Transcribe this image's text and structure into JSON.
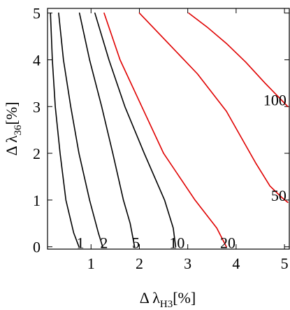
{
  "chart_data": {
    "type": "line",
    "subtype": "contour",
    "xlabel": {
      "prefix": "Δ λ",
      "sub": "H3",
      "suffix": "[%]"
    },
    "ylabel": {
      "prefix": "Δ λ",
      "sub": "36",
      "suffix": "[%]"
    },
    "xlim": [
      0.1,
      5.1
    ],
    "ylim": [
      -0.05,
      5.1
    ],
    "x_ticks": [
      "1",
      "2",
      "3",
      "4",
      "5"
    ],
    "y_ticks": [
      "0",
      "1",
      "2",
      "3",
      "4",
      "5"
    ],
    "grid": false,
    "legend": "none",
    "series": [
      {
        "label": "1",
        "color": "#000000",
        "points": [
          [
            0.16,
            5.0
          ],
          [
            0.2,
            4.0
          ],
          [
            0.26,
            3.0
          ],
          [
            0.36,
            2.0
          ],
          [
            0.48,
            1.0
          ],
          [
            0.64,
            0.3
          ],
          [
            0.75,
            0.0
          ]
        ]
      },
      {
        "label": "2",
        "color": "#000000",
        "points": [
          [
            0.33,
            5.0
          ],
          [
            0.43,
            4.0
          ],
          [
            0.58,
            3.0
          ],
          [
            0.75,
            2.0
          ],
          [
            0.97,
            1.0
          ],
          [
            1.15,
            0.3
          ],
          [
            1.24,
            0.0
          ]
        ]
      },
      {
        "label": "5",
        "color": "#000000",
        "points": [
          [
            0.76,
            5.0
          ],
          [
            0.97,
            4.0
          ],
          [
            1.22,
            3.0
          ],
          [
            1.45,
            2.0
          ],
          [
            1.67,
            1.0
          ],
          [
            1.81,
            0.5
          ],
          [
            1.9,
            0.0
          ]
        ]
      },
      {
        "label": "10",
        "color": "#000000",
        "points": [
          [
            1.08,
            5.0
          ],
          [
            1.37,
            4.0
          ],
          [
            1.7,
            3.0
          ],
          [
            2.1,
            2.0
          ],
          [
            2.52,
            1.0
          ],
          [
            2.7,
            0.4
          ],
          [
            2.75,
            0.0
          ]
        ]
      },
      {
        "label": "20",
        "color": "#e00000",
        "points": [
          [
            1.27,
            5.0
          ],
          [
            1.6,
            4.0
          ],
          [
            2.05,
            3.0
          ],
          [
            2.5,
            2.0
          ],
          [
            3.15,
            1.0
          ],
          [
            3.6,
            0.4
          ],
          [
            3.8,
            0.0
          ]
        ]
      },
      {
        "label": "50",
        "color": "#e00000",
        "points": [
          [
            2.0,
            5.0
          ],
          [
            2.6,
            4.35
          ],
          [
            3.2,
            3.7
          ],
          [
            3.8,
            2.9
          ],
          [
            4.4,
            1.8
          ],
          [
            4.7,
            1.3
          ],
          [
            4.95,
            1.05
          ],
          [
            5.07,
            0.95
          ]
        ]
      },
      {
        "label": "100",
        "color": "#e00000",
        "points": [
          [
            3.02,
            5.0
          ],
          [
            3.4,
            4.7
          ],
          [
            3.8,
            4.35
          ],
          [
            4.2,
            3.95
          ],
          [
            4.6,
            3.5
          ],
          [
            5.07,
            3.0
          ]
        ]
      }
    ]
  }
}
